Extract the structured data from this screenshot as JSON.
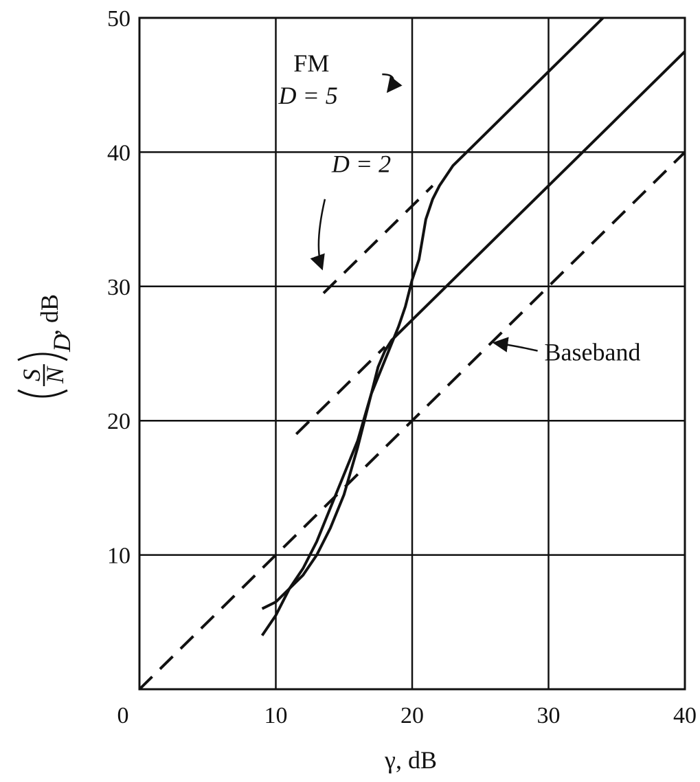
{
  "chart_data": {
    "type": "line",
    "xlabel": "γ, dB",
    "ylabel_main": "(S/N)",
    "ylabel_sub": "D",
    "ylabel_unit": ", dB",
    "ylabel_numerator": "S",
    "ylabel_denominator": "N",
    "xlim": [
      0,
      40
    ],
    "ylim": [
      0,
      50
    ],
    "xticks": [
      "0",
      "10",
      "20",
      "30",
      "40"
    ],
    "yticks": [
      "10",
      "20",
      "30",
      "40",
      "50"
    ],
    "grid": true,
    "series": [
      {
        "key": "baseband",
        "style": "dashed",
        "x": [
          0,
          40
        ],
        "y": [
          0,
          40
        ]
      },
      {
        "key": "fm_d5",
        "style": "solid",
        "x": [
          9,
          10,
          11,
          12,
          13,
          14,
          15,
          16,
          17,
          18,
          19,
          19.5,
          20,
          20.5,
          21,
          21.5,
          22,
          23,
          24,
          26,
          28,
          30,
          34
        ],
        "y": [
          4,
          5.5,
          7.5,
          9,
          11,
          13.5,
          16,
          18.5,
          22,
          24.5,
          27,
          28.5,
          30.5,
          32,
          35,
          36.5,
          37.5,
          39,
          40,
          42,
          44,
          46,
          50
        ]
      },
      {
        "key": "fm_d5_extension",
        "style": "dashed",
        "x": [
          13.5,
          21.5
        ],
        "y": [
          29.5,
          37.5
        ]
      },
      {
        "key": "fm_d2",
        "style": "solid",
        "x": [
          9,
          10,
          11,
          12,
          13,
          14,
          15,
          16,
          16.5,
          17,
          17.5,
          18,
          18.5,
          19,
          20,
          22,
          25,
          28,
          30,
          35,
          40
        ],
        "y": [
          6,
          6.5,
          7.5,
          8.5,
          10,
          12,
          14.5,
          18,
          20,
          22,
          24,
          25.2,
          26,
          26.5,
          27.5,
          29.5,
          32.5,
          35.5,
          37.5,
          42.5,
          47.5
        ]
      },
      {
        "key": "fm_d2_extension",
        "style": "dashed",
        "x": [
          11.5,
          18
        ],
        "y": [
          19,
          25.5
        ]
      }
    ],
    "annotations": {
      "fm": "FM",
      "d5": "D = 5",
      "d2": "D = 2",
      "baseband": "Baseband"
    },
    "annotation_points": {
      "fm_label_at": [
        11.3,
        46
      ],
      "d5_label_at": [
        10.2,
        43.6
      ],
      "d5_arrow": {
        "from": [
          17.8,
          45.8
        ],
        "via": [
          19.2,
          45.8
        ],
        "to": [
          18.2,
          44.5
        ]
      },
      "d2_label_at": [
        14.1,
        38.5
      ],
      "d2_arrow": {
        "from": [
          13.6,
          36.5
        ],
        "via": [
          12.8,
          33
        ],
        "to": [
          13.4,
          31.3
        ]
      },
      "baseband_label_at": [
        29.7,
        24.5
      ],
      "baseband_arrow": {
        "from": [
          29.2,
          25.2
        ],
        "via": [
          27.5,
          25.6
        ],
        "to": [
          26,
          25.8
        ]
      }
    }
  }
}
